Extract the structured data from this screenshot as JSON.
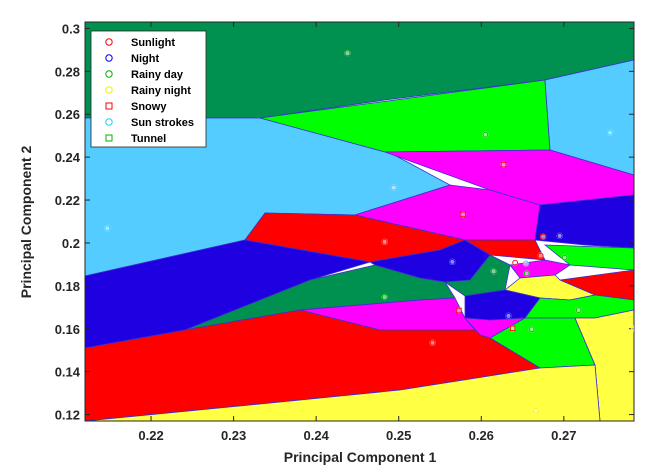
{
  "chart_data": {
    "type": "scatter",
    "xlabel": "Principal Component 1",
    "ylabel": "Principal Component 2",
    "xlim": [
      0.212,
      0.2785
    ],
    "ylim": [
      0.117,
      0.303
    ],
    "xticks": [
      "0.22",
      "0.23",
      "0.24",
      "0.25",
      "0.26",
      "0.27"
    ],
    "xtick_values": [
      0.22,
      0.23,
      0.24,
      0.25,
      0.26,
      0.27
    ],
    "yticks": [
      "0.12",
      "0.14",
      "0.16",
      "0.18",
      "0.2",
      "0.22",
      "0.24",
      "0.26",
      "0.28",
      "0.3"
    ],
    "ytick_values": [
      0.12,
      0.14,
      0.16,
      0.18,
      0.2,
      0.22,
      0.24,
      0.26,
      0.28,
      0.3
    ],
    "grid": false,
    "legend_position": "top-left",
    "series": [
      {
        "name": "Sunlight",
        "marker": "circle",
        "color": "#ff0000",
        "region_color": "#ff0000",
        "points": [
          [
            0.2483,
            0.2005
          ],
          [
            0.2541,
            0.1535
          ],
          [
            0.2641,
            0.1908
          ],
          [
            0.2672,
            0.1941
          ]
        ]
      },
      {
        "name": "Night",
        "marker": "circle",
        "color": "#0000ff",
        "region_color": "#1f00e0",
        "points": [
          [
            0.2565,
            0.1912
          ],
          [
            0.2633,
            0.166
          ],
          [
            0.2695,
            0.2033
          ]
        ]
      },
      {
        "name": "Rainy day",
        "marker": "circle",
        "color": "#00b000",
        "region_color": "#00ff00",
        "points": [
          [
            0.2605,
            0.2505
          ],
          [
            0.2655,
            0.1858
          ],
          [
            0.2661,
            0.1598
          ],
          [
            0.2701,
            0.1932
          ],
          [
            0.2718,
            0.1687
          ]
        ]
      },
      {
        "name": "Rainy night",
        "marker": "circle",
        "color": "#f0f000",
        "region_color": "#ffff44",
        "points": [
          [
            0.2666,
            0.1218
          ],
          [
            0.2785,
            0.1601
          ]
        ]
      },
      {
        "name": "Snowy",
        "marker": "square",
        "color": "#ff0000",
        "region_color": "#ff00ff",
        "points": [
          [
            0.2578,
            0.2133
          ],
          [
            0.2627,
            0.2365
          ],
          [
            0.2573,
            0.1685
          ],
          [
            0.2638,
            0.1602
          ],
          [
            0.2675,
            0.2029
          ]
        ]
      },
      {
        "name": "Sun strokes",
        "marker": "circle",
        "color": "#22ccff",
        "region_color": "#55ccff",
        "points": [
          [
            0.2147,
            0.2068
          ],
          [
            0.2494,
            0.2258
          ],
          [
            0.2756,
            0.2514
          ],
          [
            0.2654,
            0.1905
          ]
        ]
      },
      {
        "name": "Tunnel",
        "marker": "square",
        "color": "#00b000",
        "region_color": "#009050",
        "points": [
          [
            0.2438,
            0.2885
          ],
          [
            0.2483,
            0.1748
          ],
          [
            0.2615,
            0.1868
          ]
        ]
      }
    ]
  }
}
